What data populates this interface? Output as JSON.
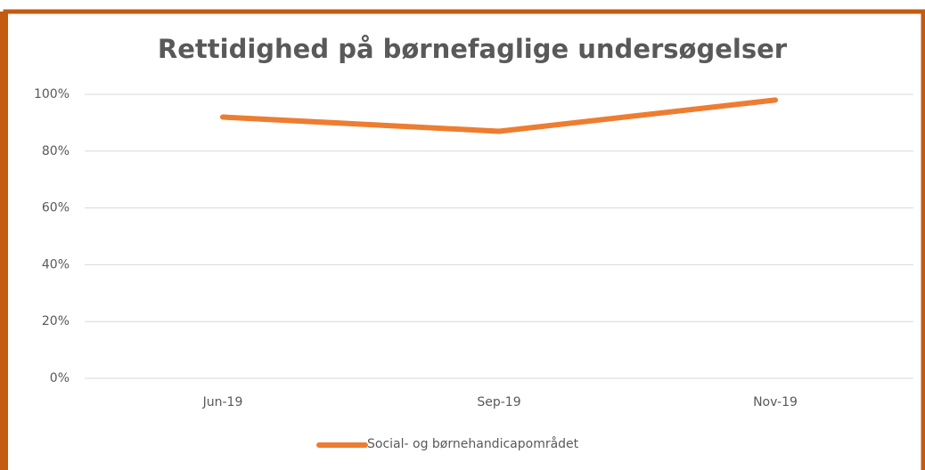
{
  "chart_data": {
    "type": "line",
    "title": "Rettidighed på børnefaglige undersøgelser",
    "categories": [
      "Jun-19",
      "Sep-19",
      "Nov-19"
    ],
    "series": [
      {
        "name": "Social- og børnehandicapområdet",
        "color": "#ed7d31",
        "values": [
          92,
          87,
          98
        ]
      }
    ],
    "ylim": [
      0,
      100
    ],
    "yticks": [
      {
        "value": 0,
        "label": "0%"
      },
      {
        "value": 20,
        "label": "20%"
      },
      {
        "value": 40,
        "label": "40%"
      },
      {
        "value": 60,
        "label": "60%"
      },
      {
        "value": 80,
        "label": "80%"
      },
      {
        "value": 100,
        "label": "100%"
      }
    ],
    "grid": true,
    "legend": "bottom"
  }
}
